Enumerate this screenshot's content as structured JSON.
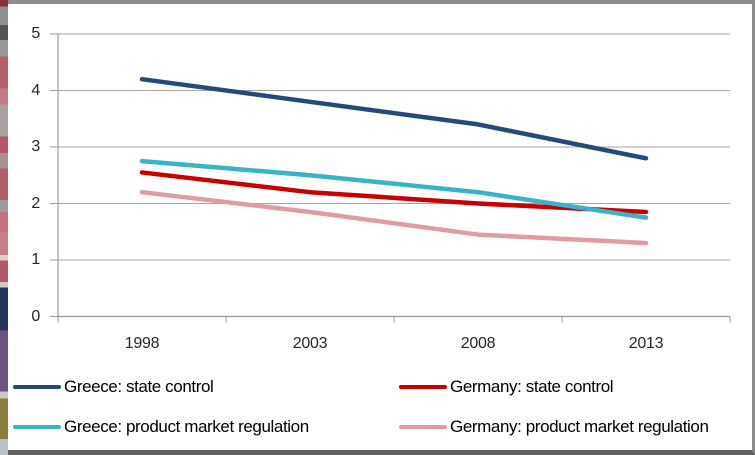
{
  "chart_data": {
    "type": "line",
    "categories": [
      "1998",
      "2003",
      "2008",
      "2013"
    ],
    "series": [
      {
        "name": "Greece: state control",
        "color": "#25497B",
        "values": [
          4.2,
          3.8,
          3.4,
          2.8
        ]
      },
      {
        "name": "Germany: state control",
        "color": "#C80000",
        "values": [
          2.55,
          2.2,
          2.0,
          1.85
        ]
      },
      {
        "name": "Greece: product market regulation",
        "color": "#38B3C8",
        "values": [
          2.75,
          2.5,
          2.2,
          1.75
        ]
      },
      {
        "name": "Germany: product market regulation",
        "color": "#E29BA1",
        "values": [
          2.2,
          1.85,
          1.45,
          1.3
        ]
      }
    ],
    "title": "",
    "xlabel": "",
    "ylabel": "",
    "ylim": [
      0,
      5
    ],
    "yticks": [
      0,
      1,
      2,
      3,
      4,
      5
    ],
    "grid": true,
    "legend_position": "bottom",
    "gridline_color": "#a6a6a6",
    "axis_color": "#9b9b9b",
    "tick_label_color": "#262626"
  }
}
